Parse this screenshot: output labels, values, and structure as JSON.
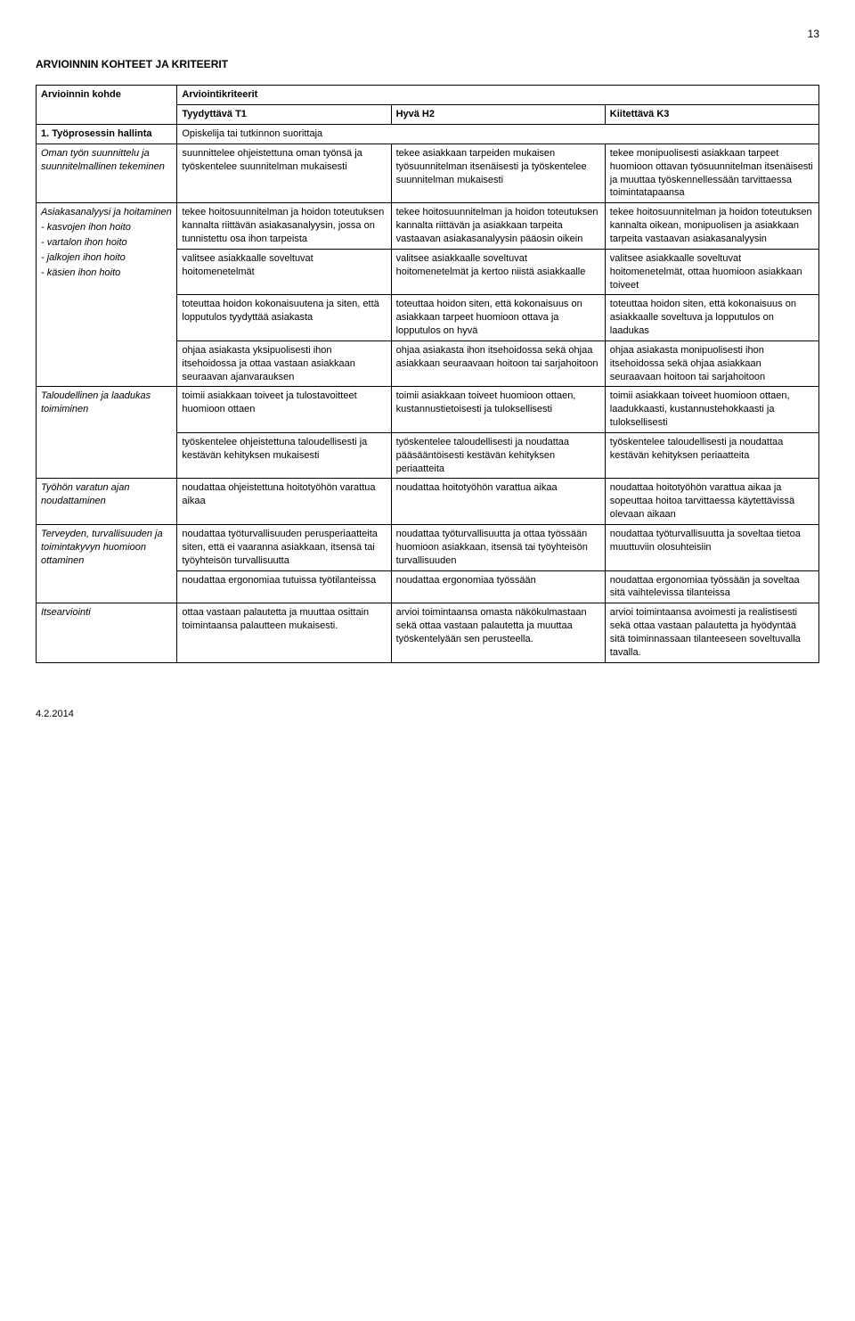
{
  "page_number": "13",
  "section_title": "ARVIOINNIN KOHTEET JA KRITEERIT",
  "col_headers": {
    "arvioinnin_kohde": "Arvioinnin kohde",
    "arviointikriteerit": "Arviointikriteerit",
    "t1": "Tyydyttävä T1",
    "h2": "Hyvä H2",
    "k3": "Kiitettävä K3"
  },
  "rows": [
    {
      "left_title": "1. Työprosessin hallinta",
      "span_text": "Opiskelija tai tutkinnon suorittaja"
    },
    {
      "left": "Oman työn suunnittelu ja suunnitelmallinen tekeminen",
      "t1": "suunnittelee ohjeistettuna oman työnsä ja työskentelee suunnitelman mukaisesti",
      "h2": "tekee asiakkaan tarpeiden mukaisen työsuunnitelman itsenäisesti ja työskentelee suunnitelman mukaisesti",
      "k3": "tekee monipuolisesti asiakkaan tarpeet huomioon ottavan työsuunnitelman itsenäisesti ja muuttaa työskennellessään tarvittaessa toimintatapaansa"
    },
    {
      "left": "Asiakasanalyysi ja hoitaminen\n- kasvojen ihon hoito\n- vartalon ihon hoito\n- jalkojen ihon hoito\n- käsien ihon hoito",
      "t1": "tekee hoitosuunnitelman ja hoidon toteutuksen kannalta riittävän asiakasanalyysin, jossa on tunnistettu osa ihon tarpeista",
      "h2": "tekee hoitosuunnitelman ja hoidon toteutuksen kannalta riittävän ja asiakkaan tarpeita vastaavan asiakasanalyysin pääosin oikein",
      "k3": "tekee hoitosuunnitelman ja hoidon toteutuksen kannalta oikean, monipuolisen ja asiakkaan tarpeita vastaavan asiakasanalyysin"
    },
    {
      "left": "",
      "t1": "valitsee asiakkaalle soveltuvat hoitomenetelmät",
      "h2": "valitsee asiakkaalle soveltuvat hoitomenetelmät ja kertoo niistä asiakkaalle",
      "k3": "valitsee asiakkaalle soveltuvat hoitomenetelmät, ottaa huomioon asiakkaan toiveet"
    },
    {
      "left": "",
      "t1": "toteuttaa hoidon kokonaisuutena ja siten, että lopputulos tyydyttää asiakasta",
      "h2": "toteuttaa hoidon siten, että kokonaisuus on asiakkaan tarpeet huomioon ottava ja lopputulos on hyvä",
      "k3": "toteuttaa hoidon siten, että kokonaisuus on asiakkaalle soveltuva ja lopputulos on laadukas"
    },
    {
      "left": "",
      "t1": "ohjaa asiakasta yksipuolisesti ihon itsehoidossa ja ottaa vastaan asiakkaan seuraavan ajanvarauksen",
      "h2": "ohjaa asiakasta ihon itsehoidossa sekä ohjaa asiakkaan seuraavaan hoitoon tai sarjahoitoon",
      "k3": "ohjaa asiakasta monipuolisesti ihon itsehoidossa sekä ohjaa asiakkaan seuraavaan hoitoon tai sarjahoitoon"
    },
    {
      "left": "Taloudellinen ja laadukas toimiminen",
      "t1": "toimii asiakkaan toiveet ja tulostavoitteet huomioon ottaen",
      "h2": "toimii asiakkaan toiveet huomioon ottaen, kustannustietoisesti ja tuloksellisesti",
      "k3": "toimii asiakkaan toiveet huomioon ottaen, laadukkaasti, kustannustehokkaasti ja tuloksellisesti"
    },
    {
      "left": "",
      "t1": "työskentelee ohjeistettuna taloudellisesti ja kestävän kehityksen mukaisesti",
      "h2": "työskentelee taloudellisesti ja noudattaa pääsääntöisesti kestävän kehityksen periaatteita",
      "k3": "työskentelee taloudellisesti ja noudattaa kestävän kehityksen periaatteita"
    },
    {
      "left": "Työhön varatun ajan noudattaminen",
      "t1": "noudattaa ohjeistettuna hoitotyöhön varattua aikaa",
      "h2": "noudattaa hoitotyöhön varattua aikaa",
      "k3": "noudattaa hoitotyöhön varattua aikaa ja sopeuttaa hoitoa tarvittaessa käytettävissä olevaan aikaan"
    },
    {
      "left": "Terveyden, turvallisuuden ja toimintakyvyn huomioon ottaminen",
      "t1": "noudattaa työturvallisuuden perusperiaatteita siten, että ei vaaranna asiakkaan, itsensä tai työyhteisön turvallisuutta",
      "h2": "noudattaa työturvallisuutta ja ottaa työssään huomioon asiakkaan, itsensä tai työyhteisön turvallisuuden",
      "k3": "noudattaa työturvallisuutta ja soveltaa tietoa muuttuviin olosuhteisiin"
    },
    {
      "left": "",
      "t1": "noudattaa ergonomiaa tutuissa työtilanteissa",
      "h2": "noudattaa ergonomiaa työssään",
      "k3": "noudattaa ergonomiaa työssään ja soveltaa sitä vaihtelevissa tilanteissa"
    },
    {
      "left": "Itsearviointi",
      "t1": "ottaa vastaan palautetta ja muuttaa osittain toimintaansa palautteen mukaisesti.",
      "h2": "arvioi toimintaansa omasta näkökulmastaan sekä ottaa vastaan palautetta ja muuttaa työskentelyään sen perusteella.",
      "k3": "arvioi toimintaansa avoimesti ja realistisesti sekä ottaa vastaan palautetta ja hyödyntää sitä toiminnassaan tilanteeseen soveltuvalla tavalla."
    }
  ],
  "left_merge": [
    {
      "from": 2,
      "span": 4
    },
    {
      "from": 6,
      "span": 2
    },
    {
      "from": 9,
      "span": 2
    }
  ],
  "footer_date": "4.2.2014"
}
